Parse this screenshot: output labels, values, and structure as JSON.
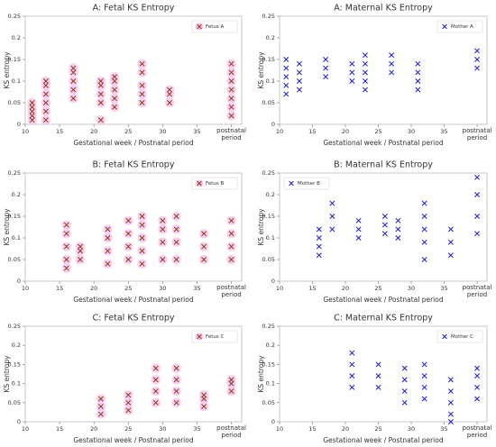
{
  "chart_data": [
    {
      "type": "scatter",
      "title": "A: Fetal KS Entropy",
      "xlabel": "Gestational week / Postnatal period",
      "ylabel": "KS entropy",
      "xlim": [
        10,
        41.5
      ],
      "ylim": [
        0,
        0.25
      ],
      "xticks": [
        10,
        15,
        20,
        25,
        30,
        35,
        {
          "value": 40,
          "label": "postnatal period"
        }
      ],
      "yticks": [
        0,
        0.05,
        0.1,
        0.15,
        0.2,
        0.25
      ],
      "legend": "upper right",
      "series": [
        {
          "name": "Fetus A",
          "color": "#8b3a1a",
          "glow_color": "#f7c4ee",
          "x": [
            11,
            11,
            11,
            11,
            11,
            13,
            13,
            13,
            13,
            13,
            13,
            17,
            17,
            17,
            17,
            17,
            21,
            21,
            21,
            21,
            21,
            23,
            23,
            23,
            23,
            23,
            27,
            27,
            27,
            27,
            27,
            31,
            31,
            31,
            40,
            40,
            40,
            40,
            40,
            40,
            40
          ],
          "y": [
            0.01,
            0.02,
            0.03,
            0.04,
            0.05,
            0.01,
            0.03,
            0.05,
            0.07,
            0.09,
            0.1,
            0.06,
            0.08,
            0.1,
            0.12,
            0.13,
            0.01,
            0.05,
            0.07,
            0.09,
            0.1,
            0.04,
            0.06,
            0.08,
            0.1,
            0.11,
            0.05,
            0.07,
            0.09,
            0.12,
            0.14,
            0.05,
            0.07,
            0.08,
            0.02,
            0.04,
            0.06,
            0.08,
            0.1,
            0.12,
            0.14
          ]
        }
      ]
    },
    {
      "type": "scatter",
      "title": "A: Maternal KS Entropy",
      "xlabel": "Gestational week / Postnatal period",
      "ylabel": "KS entropy",
      "xlim": [
        10,
        41.5
      ],
      "ylim": [
        0,
        0.25
      ],
      "xticks": [
        10,
        15,
        20,
        25,
        30,
        35,
        {
          "value": 40,
          "label": "postnatal period"
        }
      ],
      "yticks": [
        0,
        0.05,
        0.1,
        0.15,
        0.2,
        0.25
      ],
      "legend": "upper right",
      "series": [
        {
          "name": "Mother A",
          "color": "#1a1ad6",
          "x": [
            11,
            11,
            11,
            11,
            11,
            13,
            13,
            13,
            13,
            17,
            17,
            17,
            21,
            21,
            21,
            23,
            23,
            23,
            23,
            23,
            27,
            27,
            27,
            31,
            31,
            31,
            31,
            40,
            40,
            40
          ],
          "y": [
            0.07,
            0.09,
            0.11,
            0.13,
            0.15,
            0.08,
            0.1,
            0.12,
            0.14,
            0.11,
            0.13,
            0.15,
            0.1,
            0.12,
            0.14,
            0.08,
            0.1,
            0.12,
            0.14,
            0.16,
            0.12,
            0.14,
            0.16,
            0.08,
            0.1,
            0.12,
            0.14,
            0.13,
            0.15,
            0.17
          ]
        }
      ]
    },
    {
      "type": "scatter",
      "title": "B: Fetal KS Entropy",
      "xlabel": "Gestational week / Postnatal period",
      "ylabel": "KS entropy",
      "xlim": [
        10,
        41.5
      ],
      "ylim": [
        0,
        0.25
      ],
      "xticks": [
        10,
        15,
        20,
        25,
        30,
        35,
        {
          "value": 40,
          "label": "postnatal period"
        }
      ],
      "yticks": [
        0,
        0.05,
        0.1,
        0.15,
        0.2,
        0.25
      ],
      "legend": "upper right",
      "series": [
        {
          "name": "Fetus B",
          "color": "#8b3a1a",
          "glow_color": "#f7c4ee",
          "x": [
            16,
            16,
            16,
            16,
            16,
            18,
            18,
            18,
            22,
            22,
            22,
            22,
            25,
            25,
            25,
            25,
            27,
            27,
            27,
            27,
            27,
            30,
            30,
            30,
            30,
            32,
            32,
            32,
            32,
            36,
            36,
            36,
            40,
            40,
            40,
            40
          ],
          "y": [
            0.03,
            0.05,
            0.08,
            0.11,
            0.13,
            0.05,
            0.07,
            0.08,
            0.04,
            0.07,
            0.1,
            0.12,
            0.05,
            0.08,
            0.11,
            0.14,
            0.04,
            0.07,
            0.1,
            0.13,
            0.15,
            0.05,
            0.09,
            0.12,
            0.14,
            0.05,
            0.09,
            0.12,
            0.15,
            0.05,
            0.08,
            0.11,
            0.05,
            0.08,
            0.11,
            0.14
          ]
        }
      ]
    },
    {
      "type": "scatter",
      "title": "B: Maternal KS Entropy",
      "xlabel": "Gestational week / Postnatal period",
      "ylabel": "KS entropy",
      "xlim": [
        10,
        41.5
      ],
      "ylim": [
        0,
        0.25
      ],
      "xticks": [
        10,
        15,
        20,
        25,
        30,
        35,
        {
          "value": 40,
          "label": "postnatal period"
        }
      ],
      "yticks": [
        0,
        0.05,
        0.1,
        0.15,
        0.2,
        0.25
      ],
      "legend": "upper left",
      "series": [
        {
          "name": "Mother B",
          "color": "#1a1ad6",
          "x": [
            16,
            16,
            16,
            16,
            18,
            18,
            18,
            22,
            22,
            22,
            26,
            26,
            26,
            28,
            28,
            28,
            32,
            32,
            32,
            32,
            32,
            36,
            36,
            36,
            40,
            40,
            40,
            40
          ],
          "y": [
            0.06,
            0.08,
            0.1,
            0.12,
            0.12,
            0.15,
            0.18,
            0.1,
            0.12,
            0.14,
            0.11,
            0.13,
            0.15,
            0.1,
            0.12,
            0.14,
            0.05,
            0.09,
            0.12,
            0.15,
            0.18,
            0.06,
            0.09,
            0.12,
            0.11,
            0.15,
            0.2,
            0.24
          ]
        }
      ]
    },
    {
      "type": "scatter",
      "title": "C: Fetal KS Entropy",
      "xlabel": "Gestational week / Postnatal period",
      "ylabel": "KS entropy",
      "xlim": [
        10,
        41.5
      ],
      "ylim": [
        0,
        0.25
      ],
      "xticks": [
        10,
        15,
        20,
        25,
        30,
        35,
        {
          "value": 40,
          "label": "postnatal period"
        }
      ],
      "yticks": [
        0,
        0.05,
        0.1,
        0.15,
        0.2,
        0.25
      ],
      "legend": "upper right",
      "series": [
        {
          "name": "Fetus C",
          "color": "#8b3a1a",
          "glow_color": "#f7c4ee",
          "x": [
            21,
            21,
            21,
            25,
            25,
            25,
            29,
            29,
            29,
            29,
            32,
            32,
            32,
            32,
            36,
            36,
            36,
            40,
            40,
            40
          ],
          "y": [
            0.02,
            0.04,
            0.06,
            0.03,
            0.05,
            0.07,
            0.05,
            0.08,
            0.11,
            0.14,
            0.05,
            0.08,
            0.11,
            0.14,
            0.04,
            0.06,
            0.07,
            0.08,
            0.1,
            0.11
          ]
        }
      ]
    },
    {
      "type": "scatter",
      "title": "C: Maternal KS Entropy",
      "xlabel": "Gestational week / Postnatal period",
      "ylabel": "KS entropy",
      "xlim": [
        10,
        41.5
      ],
      "ylim": [
        0,
        0.25
      ],
      "xticks": [
        10,
        15,
        20,
        25,
        30,
        35,
        {
          "value": 40,
          "label": "postnatal period"
        }
      ],
      "yticks": [
        0,
        0.05,
        0.1,
        0.15,
        0.2,
        0.25
      ],
      "legend": "upper right",
      "series": [
        {
          "name": "Mother C",
          "color": "#1a1ad6",
          "x": [
            21,
            21,
            21,
            21,
            25,
            25,
            25,
            29,
            29,
            29,
            29,
            32,
            32,
            32,
            32,
            36,
            36,
            36,
            36,
            36,
            40,
            40,
            40,
            40
          ],
          "y": [
            0.09,
            0.12,
            0.15,
            0.18,
            0.09,
            0.12,
            0.15,
            0.05,
            0.08,
            0.11,
            0.14,
            0.06,
            0.09,
            0.12,
            0.15,
            0,
            0.02,
            0.05,
            0.08,
            0.11,
            0.06,
            0.09,
            0.12,
            0.14
          ]
        }
      ]
    }
  ]
}
